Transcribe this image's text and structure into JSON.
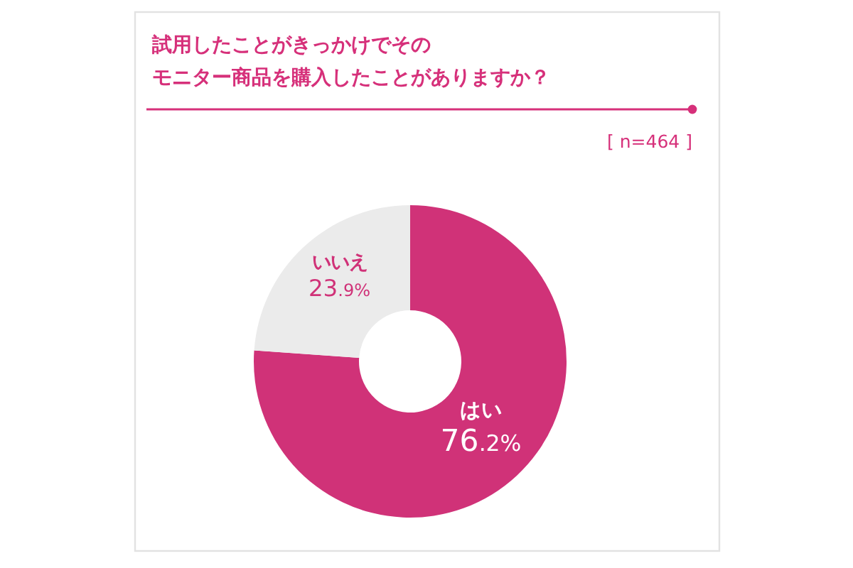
{
  "chart_data": {
    "type": "donut",
    "title": "試用したことがきっかけでそのモニター商品を購入したことがありますか？",
    "categories": [
      "はい",
      "いいえ"
    ],
    "values": [
      76.2,
      23.9
    ],
    "colors": [
      "#d03278",
      "#ebebeb"
    ],
    "value_labels": [
      "76.2%",
      "23.9%"
    ],
    "annotations": [
      "[ n=464 ]"
    ]
  }
}
